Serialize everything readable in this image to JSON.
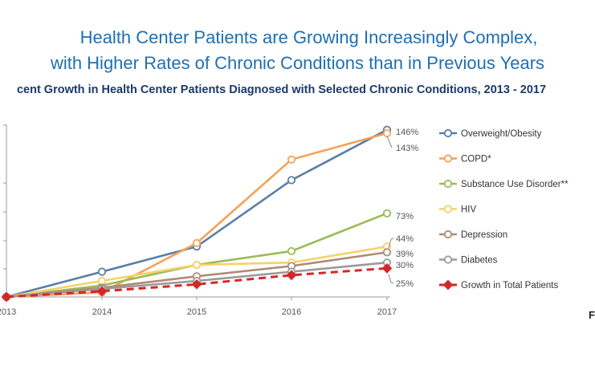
{
  "header": {
    "title_line1": "Health Center Patients are Growing Increasingly Complex,",
    "title_line2": "with Higher Rates of Chronic Conditions than in Previous Years",
    "subtitle": "cent Growth in Health Center Patients Diagnosed with Selected Chronic Conditions, 2013 - 2017",
    "edge_letter": "F"
  },
  "chart_data": {
    "type": "line",
    "x": [
      "2013",
      "2014",
      "2015",
      "2016",
      "2017"
    ],
    "ylim": [
      0,
      150
    ],
    "grid": false,
    "legend_position": "right",
    "series": [
      {
        "name": "Overweight/Obesity",
        "values": [
          0,
          22,
          44,
          102,
          146
        ],
        "end_label": "146%",
        "color": "#5a7fa6",
        "dashed": false
      },
      {
        "name": "COPD*",
        "values": [
          0,
          4,
          47,
          120,
          143
        ],
        "end_label": "143%",
        "color": "#f4a259",
        "dashed": false
      },
      {
        "name": "Substance Use Disorder**",
        "values": [
          0,
          10,
          28,
          40,
          73
        ],
        "end_label": "73%",
        "color": "#9bbb59",
        "dashed": false
      },
      {
        "name": "HIV",
        "values": [
          0,
          14,
          28,
          30,
          44
        ],
        "end_label": "44%",
        "color": "#f6d16a",
        "dashed": false
      },
      {
        "name": "Depression",
        "values": [
          0,
          8,
          18,
          27,
          39
        ],
        "end_label": "39%",
        "color": "#b08a75",
        "dashed": false
      },
      {
        "name": "Diabetes",
        "values": [
          0,
          7,
          14,
          22,
          30
        ],
        "end_label": "30%",
        "color": "#9a9a9a",
        "dashed": false
      },
      {
        "name": "Growth in Total Patients",
        "values": [
          0,
          5,
          11,
          19,
          25
        ],
        "end_label": "25%",
        "color": "#d62728",
        "dashed": true
      }
    ]
  }
}
